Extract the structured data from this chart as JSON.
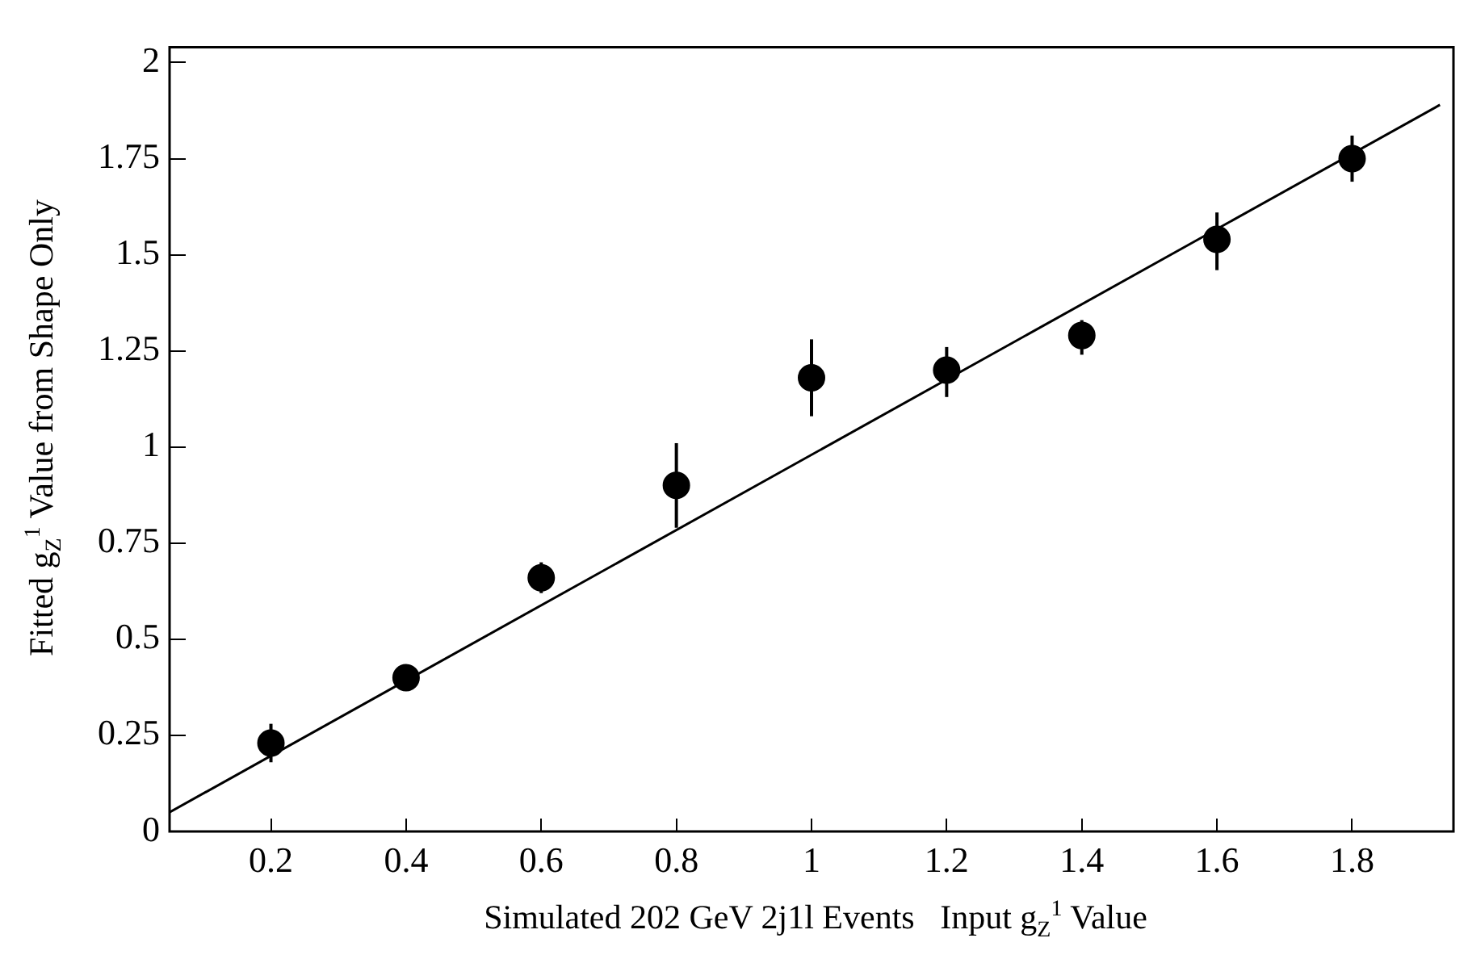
{
  "chart_data": {
    "type": "scatter",
    "xlabel": "Simulated 202 GeV 2j1l Events   Input g$_{Z}$$^{1}$ Value",
    "ylabel": "Fitted g$_{Z}$$^{1}$ Value from Shape Only",
    "series": [
      {
        "color": "#000000",
        "marker": "circle",
        "x": [
          0.2,
          0.4,
          0.6,
          0.8,
          1.0,
          1.2,
          1.4,
          1.6,
          1.8
        ],
        "values": [
          0.23,
          0.4,
          0.66,
          0.9,
          1.18,
          1.2,
          1.29,
          1.54,
          1.75
        ],
        "errors": [
          [
            0.18,
            0.28
          ],
          [
            0.37,
            0.43
          ],
          [
            0.62,
            0.7
          ],
          [
            0.79,
            1.01
          ],
          [
            1.08,
            1.28
          ],
          [
            1.13,
            1.26
          ],
          [
            1.24,
            1.33
          ],
          [
            1.46,
            1.61
          ],
          [
            1.69,
            1.81
          ]
        ]
      },
      {
        "type": "line",
        "color": "#000000",
        "marker": "none",
        "line_style": "solid",
        "x": [
          0.05,
          1.93
        ],
        "values": [
          0.05,
          1.89
        ]
      }
    ],
    "xlim": [
      0.05,
      1.95
    ],
    "xticks": [
      0.2,
      0.4,
      0.6,
      0.8,
      1,
      1.2,
      1.4,
      1.6,
      1.8
    ],
    "ylim": [
      0,
      2.04
    ],
    "yticks": [
      0,
      0.25,
      0.5,
      0.75,
      1,
      1.25,
      1.5,
      1.75,
      2
    ],
    "grid": false,
    "legend": false
  }
}
